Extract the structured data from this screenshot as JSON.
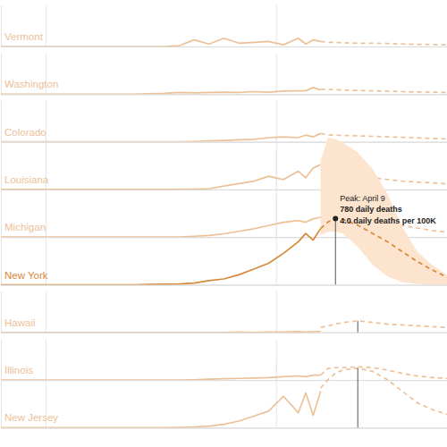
{
  "chart_data": [
    {
      "type": "line",
      "title": "Vermont",
      "color": "#ecc197",
      "xlim": [
        -6,
        54
      ],
      "xticks": [
        0,
        31
      ],
      "ylim": [
        0,
        2.5
      ],
      "yticks": [
        0
      ],
      "grid": true,
      "tick_labels": false,
      "series": [
        {
          "x": [
            -6,
            12,
            14,
            16,
            18,
            20,
            22,
            24,
            26,
            28,
            30,
            32,
            34,
            35,
            36,
            37
          ],
          "values": [
            0,
            0,
            0,
            0,
            0.05,
            0.4,
            0.15,
            0.5,
            0.2,
            0.25,
            0.3,
            0.1,
            0.5,
            0.15,
            0.4,
            0.3
          ],
          "line_style": "solid"
        },
        {
          "x": [
            37,
            38,
            39,
            40,
            42,
            44,
            46,
            48,
            50,
            52,
            54
          ],
          "values": [
            0.3,
            0.25,
            0.25,
            0.22,
            0.2,
            0.2,
            0.18,
            0.15,
            0.13,
            0.12,
            0.1
          ],
          "line_style": "dashed"
        }
      ]
    },
    {
      "type": "line",
      "title": "Washington",
      "color": "#ecc197",
      "xlim": [
        -6,
        54
      ],
      "xticks": [
        0,
        31
      ],
      "ylim": [
        0,
        2.5
      ],
      "yticks": [
        0
      ],
      "grid": true,
      "tick_labels": false,
      "series": [
        {
          "x": [
            -6,
            12,
            14,
            16,
            18,
            20,
            22,
            24,
            26,
            28,
            30,
            32,
            34,
            35,
            36,
            37
          ],
          "values": [
            0,
            0,
            0.02,
            0.05,
            0.1,
            0.08,
            0.1,
            0.12,
            0.1,
            0.15,
            0.12,
            0.18,
            0.2,
            0.2,
            0.4,
            0.25
          ],
          "line_style": "solid"
        },
        {
          "x": [
            37,
            38,
            39,
            40,
            42,
            44,
            46,
            48,
            50,
            52,
            54
          ],
          "values": [
            0.3,
            0.28,
            0.27,
            0.25,
            0.22,
            0.2,
            0.18,
            0.15,
            0.13,
            0.12,
            0.1
          ],
          "line_style": "dashed"
        }
      ]
    },
    {
      "type": "line",
      "title": "Colorado",
      "color": "#ecc197",
      "xlim": [
        -6,
        54
      ],
      "xticks": [
        0,
        31
      ],
      "ylim": [
        0,
        2.5
      ],
      "yticks": [
        0
      ],
      "grid": true,
      "tick_labels": false,
      "series": [
        {
          "x": [
            -6,
            12,
            14,
            16,
            18,
            20,
            22,
            24,
            26,
            28,
            30,
            32,
            34,
            35,
            36,
            37
          ],
          "values": [
            0,
            0,
            0,
            0,
            0,
            0.02,
            0.05,
            0.08,
            0.12,
            0.15,
            0.25,
            0.3,
            0.25,
            0.4,
            0.3,
            0.5
          ],
          "line_style": "solid"
        },
        {
          "x": [
            37,
            38,
            39,
            40,
            42,
            44,
            46,
            48,
            50,
            52,
            54
          ],
          "values": [
            0.5,
            0.42,
            0.4,
            0.38,
            0.36,
            0.33,
            0.3,
            0.27,
            0.24,
            0.2,
            0.17
          ],
          "line_style": "dashed"
        }
      ]
    },
    {
      "type": "line",
      "title": "Louisiana",
      "color": "#ecc197",
      "xlim": [
        -6,
        54
      ],
      "xticks": [
        0,
        31
      ],
      "ylim": [
        0,
        2.5
      ],
      "yticks": [
        0
      ],
      "grid": true,
      "tick_labels": false,
      "series": [
        {
          "x": [
            -6,
            12,
            14,
            16,
            18,
            20,
            22,
            24,
            26,
            28,
            30,
            32,
            34,
            35,
            36,
            37
          ],
          "values": [
            0,
            0,
            0,
            0,
            0,
            0.02,
            0.05,
            0.2,
            0.35,
            0.5,
            0.8,
            0.6,
            1.1,
            0.7,
            1.3,
            1.5
          ],
          "line_style": "solid"
        },
        {
          "x": [
            37,
            38,
            39,
            40,
            42,
            44,
            46,
            48,
            50,
            52,
            54
          ],
          "values": [
            0.8,
            0.85,
            0.82,
            0.8,
            0.75,
            0.7,
            0.6,
            0.5,
            0.45,
            0.4,
            0.35
          ],
          "line_style": "dashed"
        }
      ]
    },
    {
      "type": "line",
      "title": "Michigan",
      "color": "#ecc197",
      "xlim": [
        -6,
        54
      ],
      "xticks": [
        0,
        31
      ],
      "ylim": [
        0,
        2.5
      ],
      "yticks": [
        0
      ],
      "grid": true,
      "tick_labels": false,
      "series": [
        {
          "x": [
            -6,
            12,
            14,
            16,
            18,
            20,
            22,
            24,
            26,
            28,
            30,
            32,
            34,
            35,
            36,
            37
          ],
          "values": [
            0,
            0,
            0,
            0,
            0,
            0.05,
            0.1,
            0.2,
            0.35,
            0.5,
            0.7,
            0.9,
            1.0,
            0.9,
            1.1,
            1.2
          ],
          "line_style": "solid"
        },
        {
          "x": [
            37,
            38,
            39,
            40,
            42,
            44,
            46,
            48,
            50,
            52,
            54
          ],
          "values": [
            1.2,
            1.3,
            1.3,
            1.25,
            1.2,
            1.05,
            0.9,
            0.7,
            0.55,
            0.4,
            0.3
          ],
          "line_style": "dashed"
        }
      ]
    },
    {
      "type": "line",
      "title": "New York",
      "color": "#d7883a",
      "xlim": [
        -6,
        54
      ],
      "xticks": [
        0,
        31
      ],
      "ylim": [
        0,
        9
      ],
      "yticks": [
        0
      ],
      "grid": true,
      "tick_labels": false,
      "series": [
        {
          "type": "area",
          "color": "#fce4cf",
          "x": [
            37,
            38,
            39,
            40,
            42,
            44,
            46,
            48,
            50,
            52,
            54
          ],
          "values": [
            7.5,
            8.9,
            8.8,
            8.6,
            8.0,
            7.0,
            5.5,
            3.5,
            2.0,
            1.2,
            0.6
          ],
          "lower": [
            3.0,
            3.2,
            3.2,
            3.1,
            2.3,
            1.2,
            0.5,
            0.15,
            0.05,
            0,
            0
          ]
        },
        {
          "x": [
            -6,
            12,
            14,
            16,
            18,
            20,
            22,
            24,
            26,
            28,
            30,
            32,
            34,
            35,
            36,
            37
          ],
          "values": [
            0,
            0,
            0.02,
            0.03,
            0.05,
            0.1,
            0.25,
            0.35,
            0.6,
            0.95,
            1.3,
            1.9,
            2.6,
            3.1,
            2.7,
            3.4
          ],
          "line_style": "solid"
        },
        {
          "x": [
            37,
            38,
            39,
            40,
            42,
            44,
            46,
            48,
            50,
            52,
            54
          ],
          "values": [
            3.4,
            3.8,
            4.0,
            3.95,
            3.6,
            3.1,
            2.6,
            2.0,
            1.4,
            0.9,
            0.45
          ],
          "line_style": "dashed"
        }
      ],
      "annotations": [
        {
          "x": 39,
          "y": 4.0,
          "text": [
            "Peak: April 9",
            "780 daily deaths",
            "4.0 daily deaths per 100K"
          ]
        }
      ]
    },
    {
      "type": "line",
      "title": "Hawaii",
      "color": "#ecc197",
      "xlim": [
        -6,
        54
      ],
      "xticks": [
        0,
        31
      ],
      "ylim": [
        0,
        2.5
      ],
      "yticks": [
        0
      ],
      "grid": true,
      "tick_labels": false,
      "series": [
        {
          "x": [
            -6,
            12,
            14,
            16,
            18,
            20,
            22,
            24,
            26,
            28,
            30,
            32,
            34,
            35,
            36,
            37
          ],
          "values": [
            0,
            0,
            0,
            0,
            0,
            0,
            0,
            0,
            0.02,
            0,
            0.03,
            0.02,
            0.05,
            0.03,
            0.05,
            0.05
          ],
          "line_style": "solid"
        },
        {
          "x": [
            37,
            38,
            39,
            40,
            42,
            44,
            46,
            48,
            50,
            52,
            54
          ],
          "values": [
            0.3,
            0.4,
            0.5,
            0.6,
            0.7,
            0.6,
            0.5,
            0.45,
            0.4,
            0.35,
            0.3
          ],
          "line_style": "dashed"
        }
      ],
      "annotations": [
        {
          "x": 42,
          "y": 0.7
        }
      ]
    },
    {
      "type": "line",
      "title": "Illinois",
      "color": "#ecc197",
      "xlim": [
        -6,
        54
      ],
      "xticks": [
        0,
        31
      ],
      "ylim": [
        0,
        2.5
      ],
      "yticks": [
        0
      ],
      "grid": true,
      "tick_labels": false,
      "series": [
        {
          "x": [
            -6,
            12,
            14,
            16,
            18,
            20,
            22,
            24,
            26,
            28,
            30,
            32,
            34,
            35,
            36,
            37
          ],
          "values": [
            0,
            0,
            0,
            0,
            0,
            0.02,
            0.05,
            0.08,
            0.1,
            0.12,
            0.15,
            0.2,
            0.25,
            0.2,
            0.3,
            0.3
          ],
          "line_style": "solid"
        },
        {
          "x": [
            37,
            38,
            39,
            40,
            42,
            44,
            46,
            48,
            50,
            52,
            54
          ],
          "values": [
            0.3,
            0.7,
            0.75,
            0.75,
            0.8,
            0.75,
            0.6,
            0.4,
            0.25,
            0.15,
            0.1
          ],
          "line_style": "dashed"
        }
      ]
    },
    {
      "type": "line",
      "title": "New Jersey",
      "color": "#ecc197",
      "xlim": [
        -6,
        54
      ],
      "xticks": [
        0,
        31
      ],
      "ylim": [
        0,
        4
      ],
      "yticks": [
        0
      ],
      "grid": true,
      "tick_labels": false,
      "series": [
        {
          "x": [
            -6,
            12,
            14,
            16,
            18,
            20,
            22,
            24,
            26,
            28,
            30,
            32,
            34,
            35,
            36,
            37
          ],
          "values": [
            0,
            0,
            0,
            0,
            0.02,
            0.05,
            0.1,
            0.2,
            0.4,
            0.7,
            1.0,
            1.9,
            0.9,
            2.1,
            0.75,
            2.2
          ],
          "line_style": "solid"
        },
        {
          "x": [
            37,
            38,
            39,
            40,
            42,
            44,
            46,
            48,
            50,
            52,
            54
          ],
          "values": [
            2.4,
            2.9,
            3.3,
            3.5,
            3.6,
            3.4,
            2.9,
            2.2,
            1.5,
            1.1,
            0.8
          ],
          "line_style": "dashed"
        }
      ],
      "annotations": [
        {
          "x": 42,
          "y": 3.6
        }
      ]
    }
  ]
}
